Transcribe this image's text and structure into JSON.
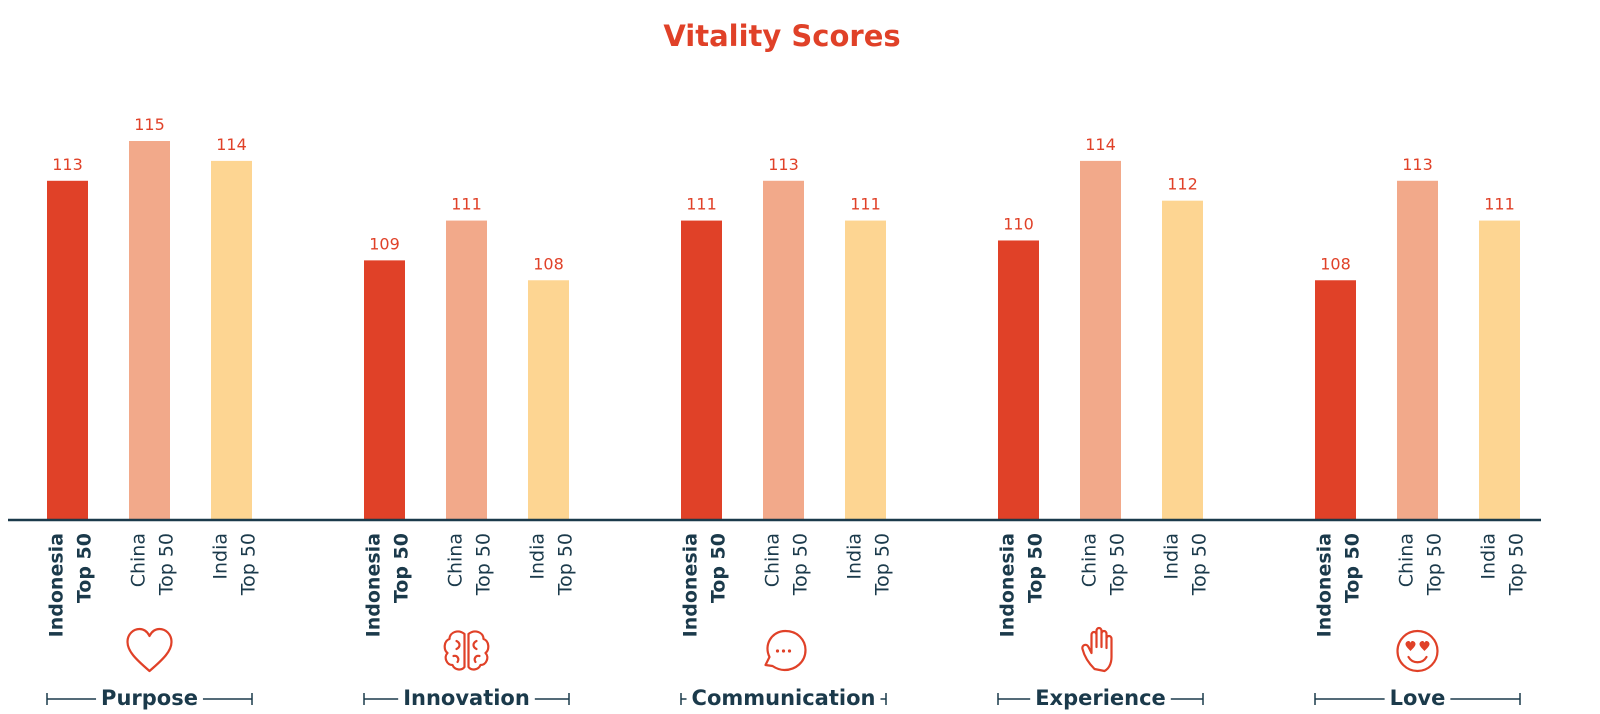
{
  "chart_data": {
    "type": "bar",
    "title": "Vitality Scores",
    "xlabel": "",
    "ylabel": "",
    "ylim": [
      96,
      115
    ],
    "grid": false,
    "legend": "none",
    "colors": [
      "#e04128",
      "#f2a98a",
      "#fdd592"
    ],
    "series_labels": [
      {
        "line1": "Indonesia",
        "line2": "Top 50",
        "bold": true
      },
      {
        "line1": "China",
        "line2": "Top 50",
        "bold": false
      },
      {
        "line1": "India",
        "line2": "Top 50",
        "bold": false
      }
    ],
    "series": [
      {
        "name": "Indonesia Top 50",
        "values": [
          113,
          109,
          111,
          110,
          108
        ]
      },
      {
        "name": "China Top 50",
        "values": [
          115,
          111,
          113,
          114,
          113
        ]
      },
      {
        "name": "India Top 50",
        "values": [
          114,
          108,
          111,
          112,
          111
        ]
      }
    ],
    "categories": [
      "Purpose",
      "Innovation",
      "Communication",
      "Experience",
      "Love"
    ],
    "category_icons": [
      "heart-icon",
      "brain-icon",
      "speech-bubble-icon",
      "hand-icon",
      "heart-eyes-smiley-icon"
    ]
  }
}
